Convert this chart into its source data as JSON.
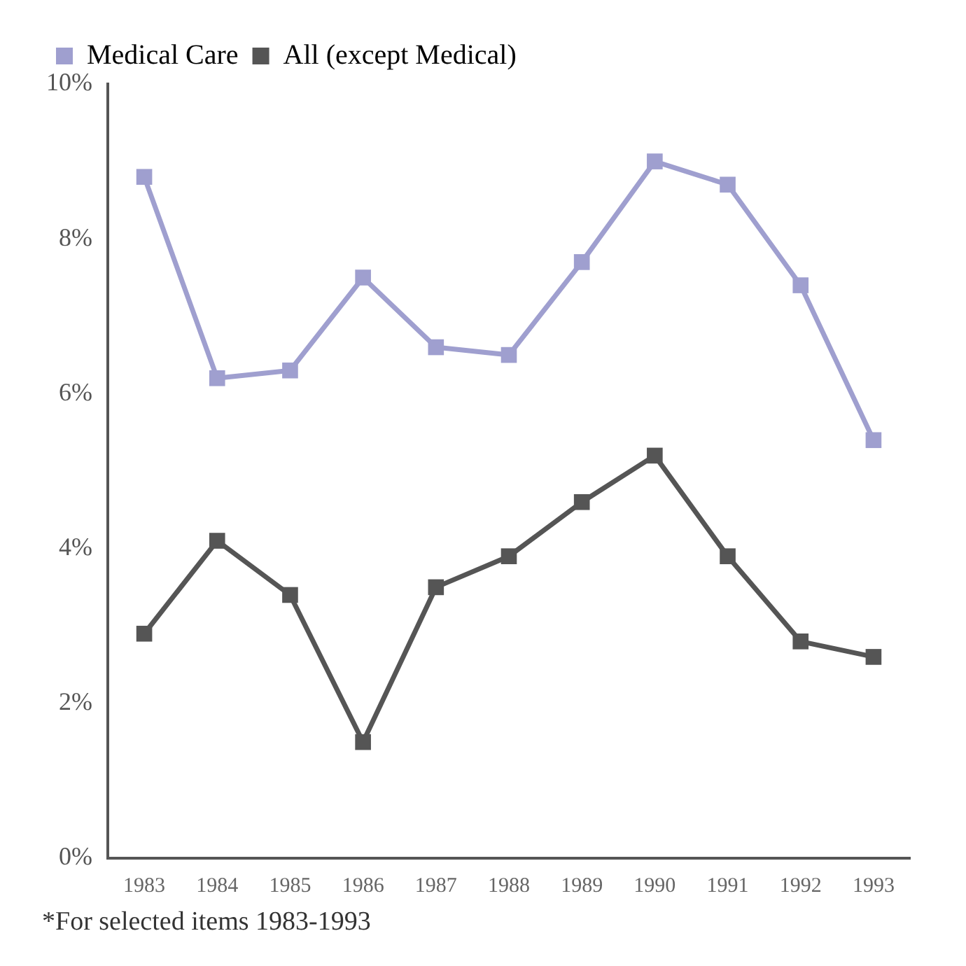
{
  "chart_data": {
    "type": "line",
    "categories": [
      "1983",
      "1984",
      "1985",
      "1986",
      "1987",
      "1988",
      "1989",
      "1990",
      "1991",
      "1992",
      "1993"
    ],
    "series": [
      {
        "name": "Medical Care",
        "color": "#9f9fcf",
        "values": [
          8.8,
          6.2,
          6.3,
          7.5,
          6.6,
          6.5,
          7.7,
          9.0,
          8.7,
          7.4,
          5.4
        ]
      },
      {
        "name": "All (except Medical)",
        "color": "#555555",
        "values": [
          2.9,
          4.1,
          3.4,
          1.5,
          3.5,
          3.9,
          4.6,
          5.2,
          3.9,
          2.8,
          2.6
        ]
      }
    ],
    "ylim": [
      0,
      10
    ],
    "yticks": [
      {
        "value": 0,
        "label": "0%"
      },
      {
        "value": 2,
        "label": "2%"
      },
      {
        "value": 4,
        "label": "4%"
      },
      {
        "value": 6,
        "label": "6%"
      },
      {
        "value": 8,
        "label": "8%"
      },
      {
        "value": 10,
        "label": "10%"
      }
    ],
    "grid": false,
    "legend": "top left",
    "marker": "square",
    "line_style": "solid",
    "annotations": [
      "*For selected items 1983-1993"
    ]
  }
}
